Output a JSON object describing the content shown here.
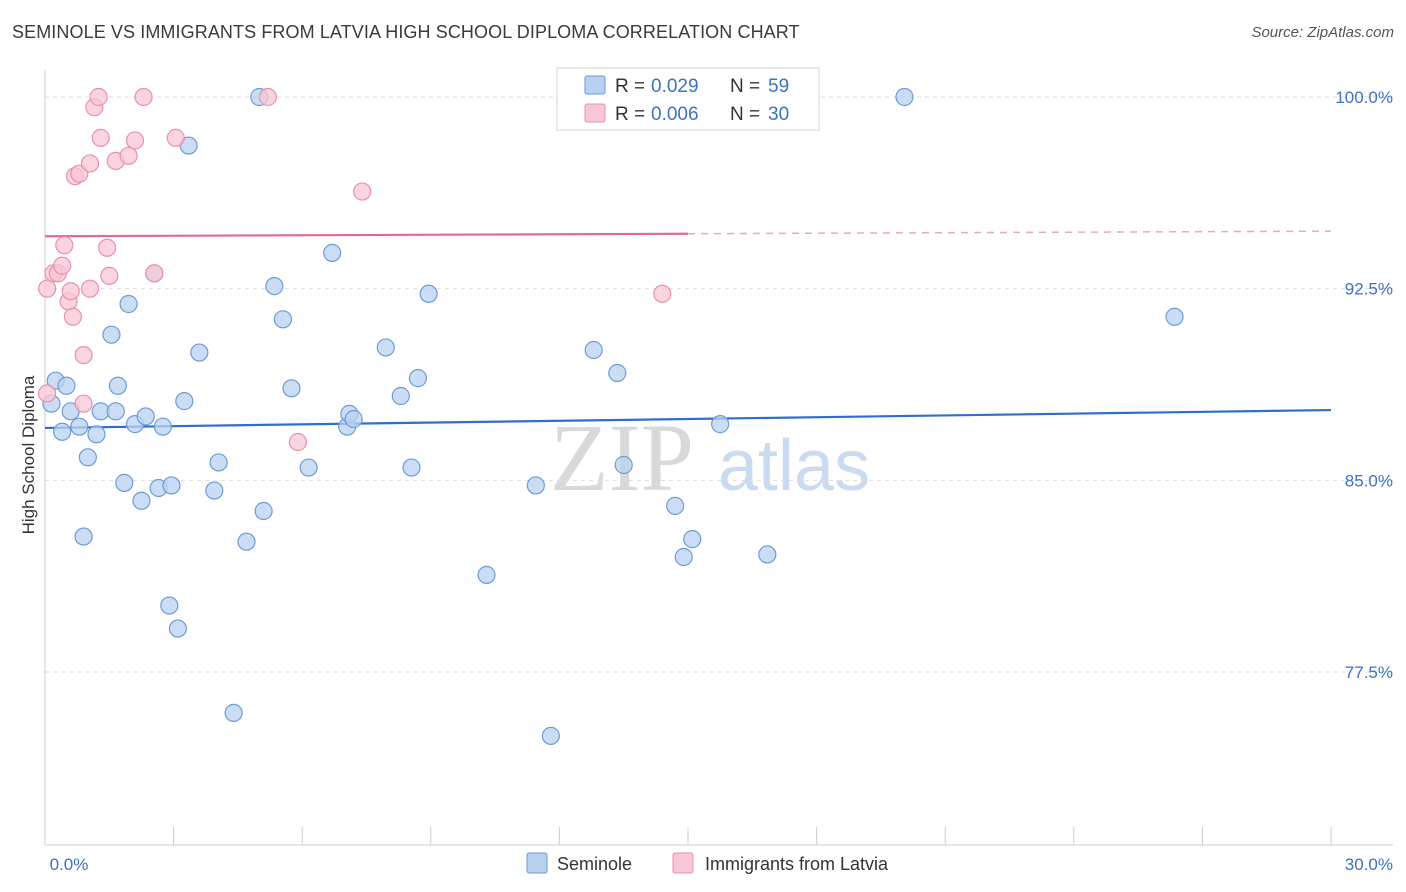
{
  "title": "SEMINOLE VS IMMIGRANTS FROM LATVIA HIGH SCHOOL DIPLOMA CORRELATION CHART",
  "source": "Source: ZipAtlas.com",
  "watermark": {
    "zip": "ZIP",
    "atlas": "atlas"
  },
  "stats": {
    "r_label": "R =",
    "n_label": "N =",
    "rows": [
      {
        "series": "Seminole",
        "r": "0.029",
        "n": "59"
      },
      {
        "series": "Immigrants from Latvia",
        "r": "0.006",
        "n": "30"
      }
    ]
  },
  "colors": {
    "seminole_fill": "#b9d1f0",
    "seminole_stroke": "#6b9bd8",
    "seminole_line": "#2f6fcb",
    "latvia_fill": "#f8c6d4",
    "latvia_stroke": "#e891aa",
    "latvia_line": "#e26a8e",
    "accent_text": "#3b72c4"
  },
  "chart_data": {
    "type": "scatter",
    "xlabel": "",
    "ylabel": "High School Diploma",
    "xlim": [
      0,
      30
    ],
    "ylim": [
      70.0,
      100.5
    ],
    "x_tick_labels": [
      "0.0%",
      "30.0%"
    ],
    "y_ticks": [
      77.5,
      85.0,
      92.5,
      100.0
    ],
    "y_tick_labels": [
      "77.5%",
      "85.0%",
      "92.5%",
      "100.0%"
    ],
    "grid": true,
    "legend_position": "bottom-center",
    "legend": [
      "Seminole",
      "Immigrants from Latvia"
    ],
    "series": [
      {
        "name": "Seminole",
        "points": [
          [
            0.25,
            88.9
          ],
          [
            0.5,
            88.7
          ],
          [
            0.15,
            88.0
          ],
          [
            0.4,
            86.9
          ],
          [
            0.8,
            87.1
          ],
          [
            0.6,
            87.7
          ],
          [
            1.0,
            85.9
          ],
          [
            1.2,
            86.8
          ],
          [
            1.3,
            87.7
          ],
          [
            1.65,
            87.7
          ],
          [
            1.7,
            88.7
          ],
          [
            1.55,
            90.7
          ],
          [
            0.9,
            82.8
          ],
          [
            1.85,
            84.9
          ],
          [
            1.95,
            91.9
          ],
          [
            2.1,
            87.2
          ],
          [
            2.25,
            84.2
          ],
          [
            2.35,
            87.5
          ],
          [
            2.55,
            93.1
          ],
          [
            2.65,
            84.7
          ],
          [
            2.75,
            87.1
          ],
          [
            2.95,
            84.8
          ],
          [
            2.9,
            80.1
          ],
          [
            3.1,
            79.2
          ],
          [
            3.25,
            88.1
          ],
          [
            3.35,
            98.1
          ],
          [
            3.6,
            90.0
          ],
          [
            3.95,
            84.6
          ],
          [
            4.05,
            85.7
          ],
          [
            4.4,
            75.9
          ],
          [
            4.7,
            82.6
          ],
          [
            5.1,
            83.8
          ],
          [
            5.0,
            100.0
          ],
          [
            5.35,
            92.6
          ],
          [
            5.55,
            91.3
          ],
          [
            5.75,
            88.6
          ],
          [
            6.15,
            85.5
          ],
          [
            6.7,
            93.9
          ],
          [
            7.05,
            87.1
          ],
          [
            7.1,
            87.6
          ],
          [
            7.2,
            87.4
          ],
          [
            7.95,
            90.2
          ],
          [
            8.3,
            88.3
          ],
          [
            8.55,
            85.5
          ],
          [
            8.7,
            89.0
          ],
          [
            8.95,
            92.3
          ],
          [
            10.3,
            81.3
          ],
          [
            11.45,
            84.8
          ],
          [
            11.8,
            75.0
          ],
          [
            12.8,
            90.1
          ],
          [
            13.35,
            89.2
          ],
          [
            13.5,
            85.6
          ],
          [
            14.7,
            84.0
          ],
          [
            14.9,
            82.0
          ],
          [
            15.1,
            82.7
          ],
          [
            15.75,
            87.2
          ],
          [
            16.85,
            82.1
          ],
          [
            20.05,
            100.0
          ],
          [
            26.35,
            91.4
          ]
        ],
        "trend": {
          "x": [
            0,
            30
          ],
          "y": [
            87.05,
            87.75
          ]
        }
      },
      {
        "name": "Immigrants from Latvia",
        "points": [
          [
            0.05,
            92.5
          ],
          [
            0.05,
            88.4
          ],
          [
            0.2,
            93.1
          ],
          [
            0.3,
            93.1
          ],
          [
            0.4,
            93.4
          ],
          [
            0.45,
            94.2
          ],
          [
            0.55,
            92.0
          ],
          [
            0.6,
            92.4
          ],
          [
            0.65,
            91.4
          ],
          [
            0.7,
            96.9
          ],
          [
            0.8,
            97.0
          ],
          [
            0.9,
            89.9
          ],
          [
            0.9,
            88.0
          ],
          [
            1.05,
            97.4
          ],
          [
            1.05,
            92.5
          ],
          [
            1.15,
            99.6
          ],
          [
            1.25,
            100.0
          ],
          [
            1.3,
            98.4
          ],
          [
            1.45,
            94.1
          ],
          [
            1.5,
            93.0
          ],
          [
            1.65,
            97.5
          ],
          [
            1.95,
            97.7
          ],
          [
            2.1,
            98.3
          ],
          [
            2.3,
            100.0
          ],
          [
            2.55,
            93.1
          ],
          [
            3.05,
            98.4
          ],
          [
            5.2,
            100.0
          ],
          [
            5.9,
            86.5
          ],
          [
            7.4,
            96.3
          ],
          [
            14.4,
            92.3
          ]
        ],
        "trend": {
          "x": [
            0,
            30
          ],
          "y": [
            94.55,
            94.75
          ],
          "solid_until_x": 15
        }
      }
    ]
  }
}
